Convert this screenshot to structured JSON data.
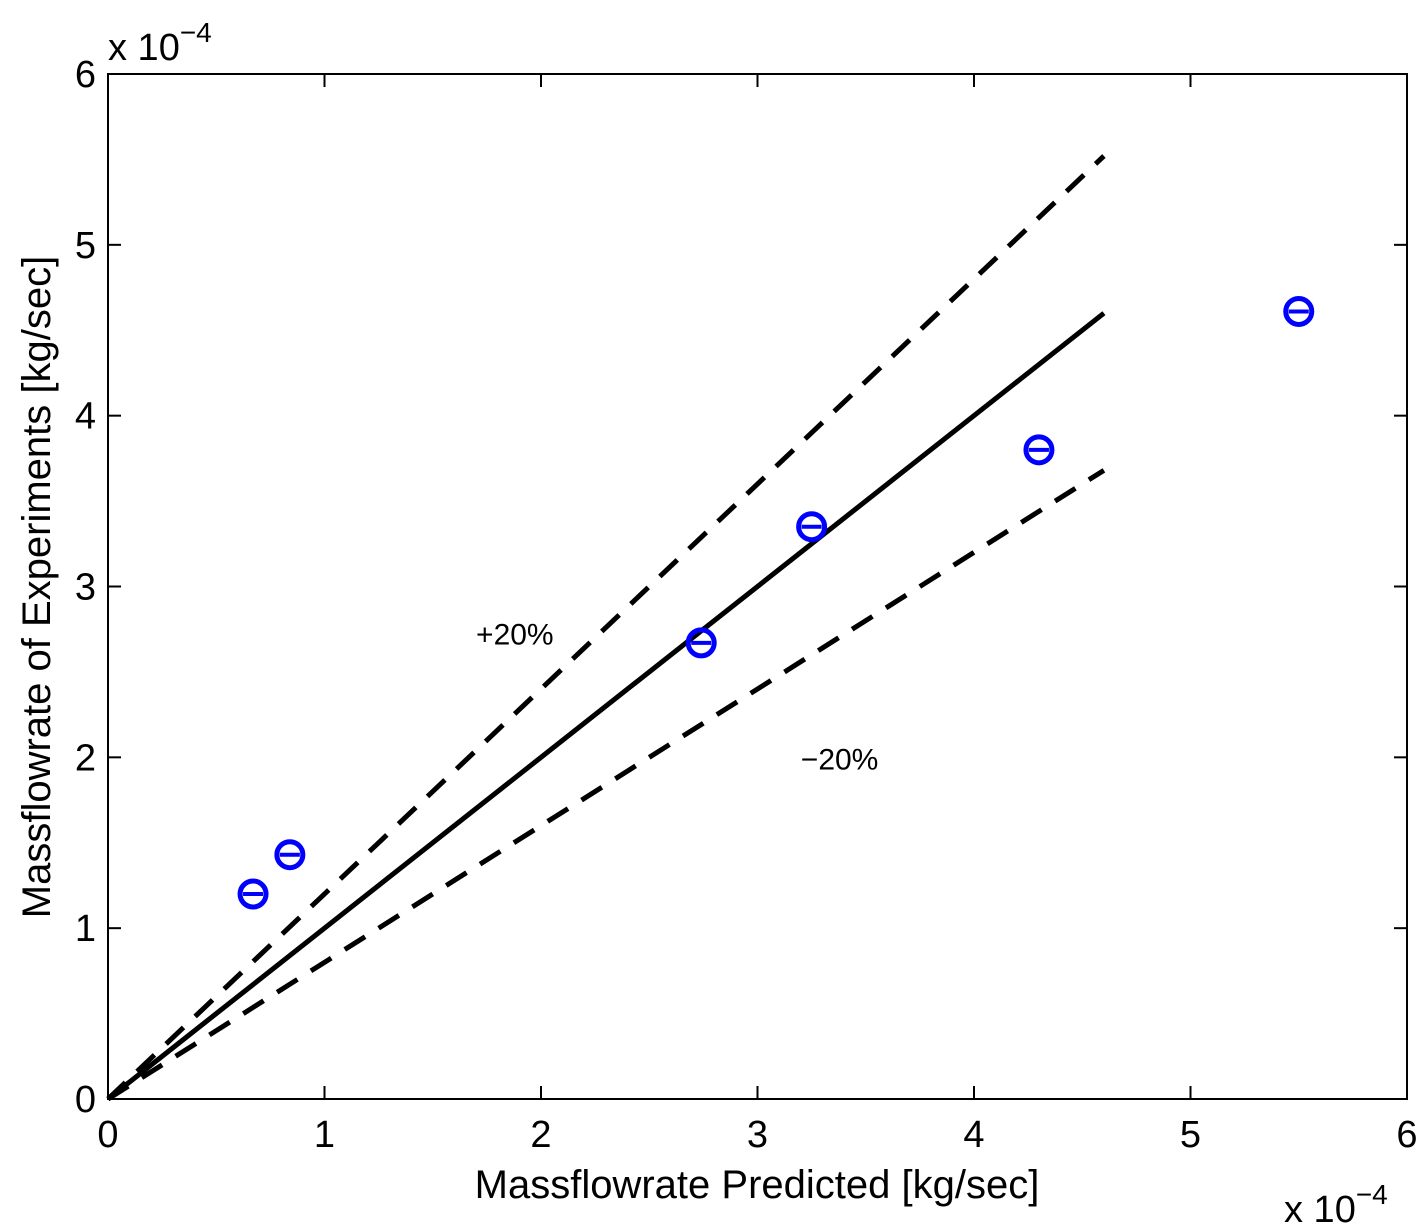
{
  "chart_data": {
    "type": "scatter",
    "title": "",
    "xlabel": "Massflowrate Predicted [kg/sec]",
    "ylabel": "Massflowrate of Experiments [kg/sec]",
    "x_exponent_label": "x 10",
    "x_exponent_power": "−4",
    "y_exponent_label": "x 10",
    "y_exponent_power": "−4",
    "scale": 0.0001,
    "xlim": [
      0,
      6
    ],
    "ylim": [
      0,
      6
    ],
    "xticks": [
      0,
      1,
      2,
      3,
      4,
      5,
      6
    ],
    "yticks": [
      0,
      1,
      2,
      3,
      4,
      5,
      6
    ],
    "xtick_labels": [
      "0",
      "1",
      "2",
      "3",
      "4",
      "5",
      "6"
    ],
    "ytick_labels": [
      "0",
      "1",
      "2",
      "3",
      "4",
      "5",
      "6"
    ],
    "grid": false,
    "legend": "none",
    "marker_color": "#0000ff",
    "line_color": "#000000",
    "points": [
      {
        "x": 0.67,
        "y": 1.2
      },
      {
        "x": 0.84,
        "y": 1.43
      },
      {
        "x": 2.74,
        "y": 2.67
      },
      {
        "x": 3.25,
        "y": 3.35
      },
      {
        "x": 4.3,
        "y": 3.8
      },
      {
        "x": 5.5,
        "y": 4.61
      }
    ],
    "reference_lines": [
      {
        "label": "",
        "style": "solid",
        "x": [
          0,
          4.6
        ],
        "y": [
          0,
          4.6
        ]
      },
      {
        "label": "+20%",
        "style": "dashed",
        "x": [
          0,
          4.6
        ],
        "y": [
          0,
          5.52
        ]
      },
      {
        "label": "−20%",
        "style": "dashed",
        "x": [
          0,
          4.6
        ],
        "y": [
          0,
          3.68
        ]
      }
    ],
    "annotations": [
      {
        "text": "+20%",
        "x": 1.7,
        "y": 2.66
      },
      {
        "text": "−20%",
        "x": 3.2,
        "y": 1.93
      }
    ]
  }
}
